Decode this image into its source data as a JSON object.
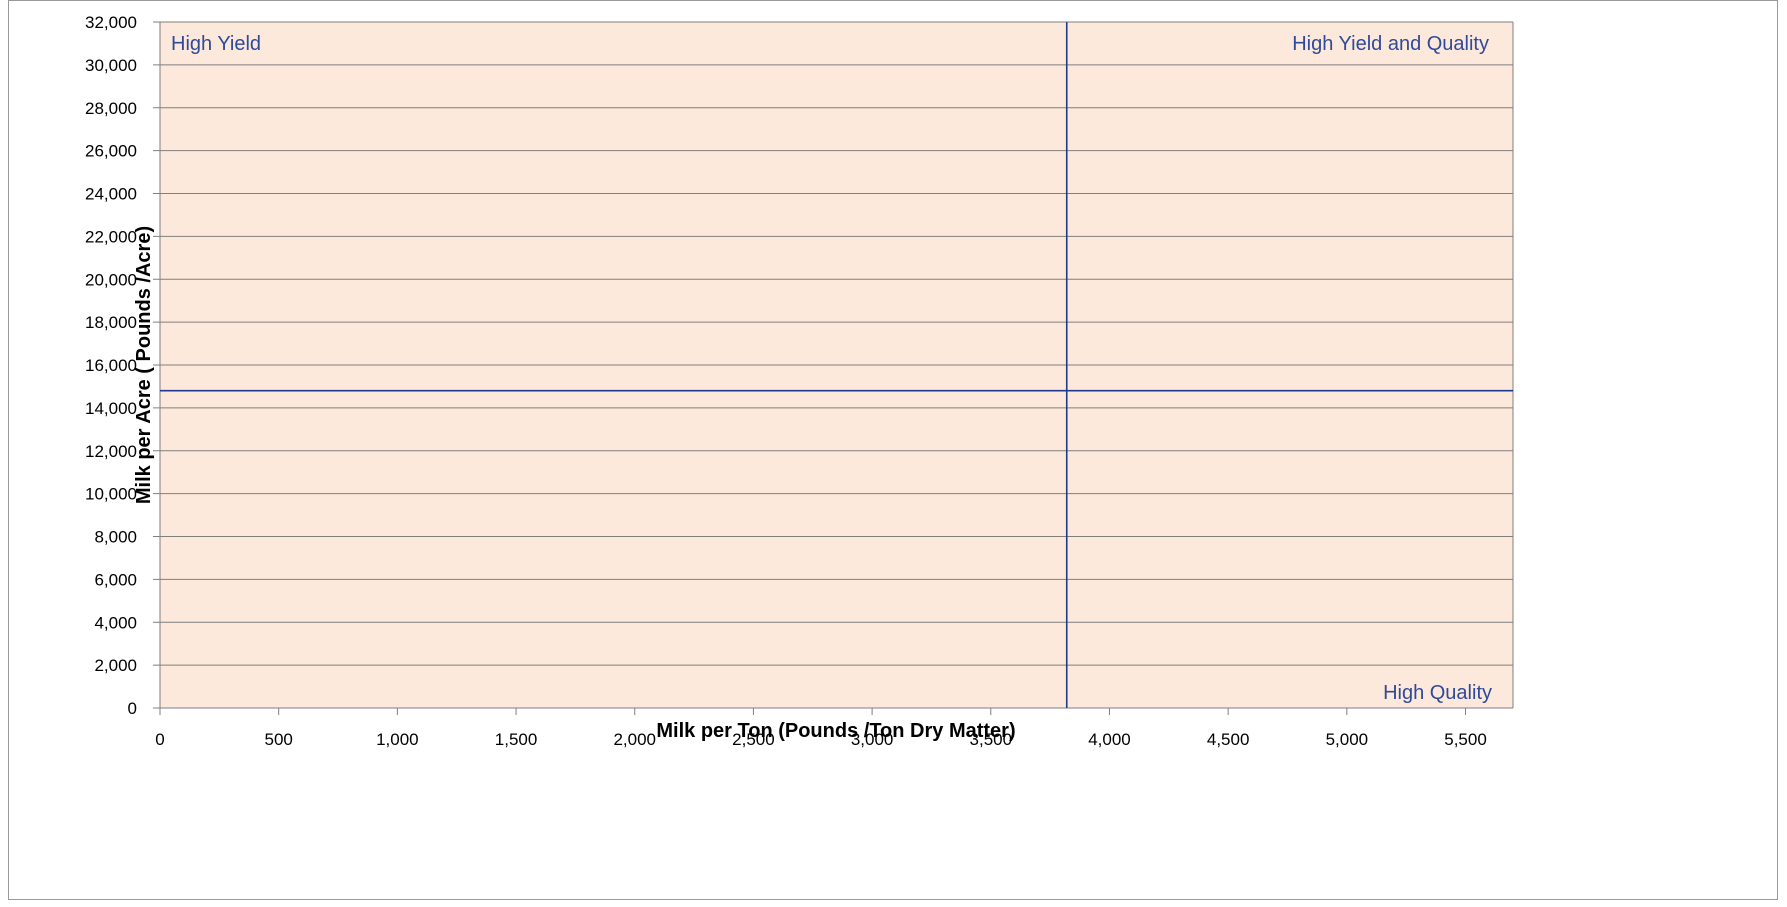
{
  "chart_data": {
    "type": "scatter",
    "title": "",
    "xlabel": "Milk per Ton (Pounds /Ton Dry Matter)",
    "ylabel": "Milk per Acre ( Pounds /Acre)",
    "xlim": [
      0,
      5700
    ],
    "ylim": [
      0,
      32000
    ],
    "x_ticks": [
      0,
      500,
      1000,
      1500,
      2000,
      2500,
      3000,
      3500,
      4000,
      4500,
      5000,
      5500
    ],
    "x_tick_labels": [
      "0",
      "500",
      "1,000",
      "1,500",
      "2,000",
      "2,500",
      "3,000",
      "3,500",
      "4,000",
      "4,500",
      "5,000",
      "5,500"
    ],
    "y_ticks": [
      0,
      2000,
      4000,
      6000,
      8000,
      10000,
      12000,
      14000,
      16000,
      18000,
      20000,
      22000,
      24000,
      26000,
      28000,
      30000,
      32000
    ],
    "y_tick_labels": [
      "0",
      "2,000",
      "4,000",
      "6,000",
      "8,000",
      "10,000",
      "12,000",
      "14,000",
      "16,000",
      "18,000",
      "20,000",
      "22,000",
      "24,000",
      "26,000",
      "28,000",
      "30,000",
      "32,000"
    ],
    "grid": "horizontal",
    "series": [],
    "reference_lines": {
      "vertical_x": 3820,
      "horizontal_y": 14800
    },
    "quadrant_labels": {
      "top_left": "High Yield",
      "top_right": "High Yield and Quality",
      "bottom_right": "High Quality"
    },
    "colors": {
      "plot_background": "#fde9db",
      "gridline": "#7f7f7f",
      "reference_line": "#1f3a8a",
      "quadrant_text": "#2e4a9a",
      "frame_border": "#9a9a9a"
    }
  }
}
